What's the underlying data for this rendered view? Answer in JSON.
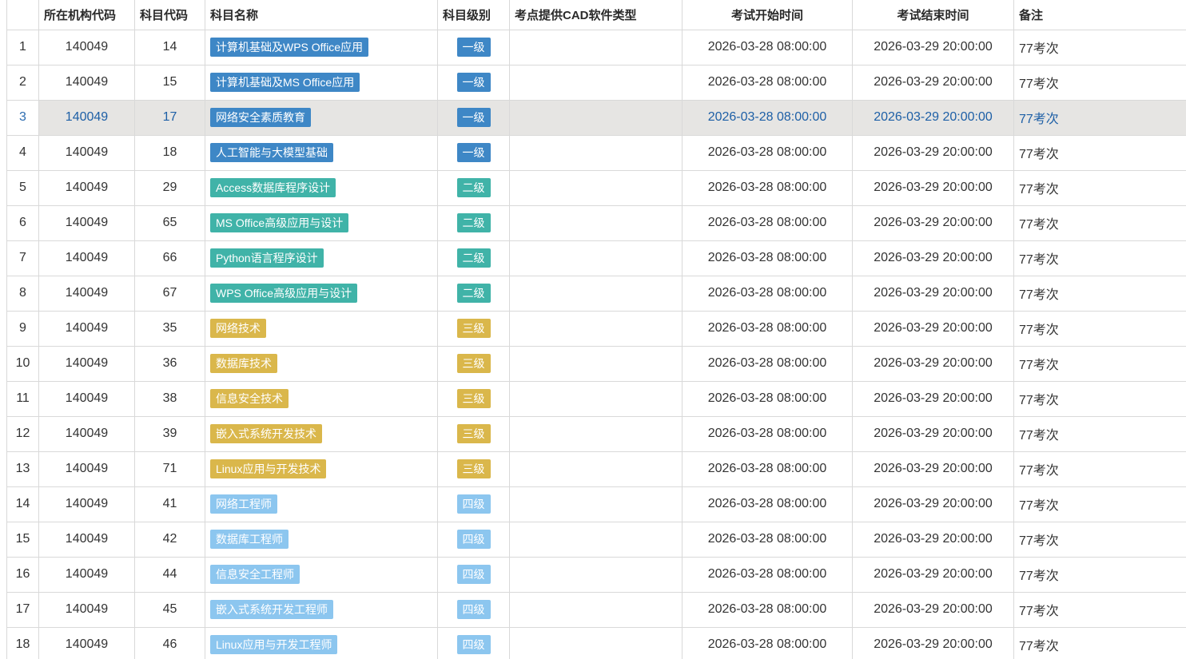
{
  "table": {
    "columns": [
      {
        "key": "index",
        "label": "",
        "align": "center"
      },
      {
        "key": "org_code",
        "label": "所在机构代码",
        "align": "left"
      },
      {
        "key": "subject_code",
        "label": "科目代码",
        "align": "left"
      },
      {
        "key": "subject_name",
        "label": "科目名称",
        "align": "left"
      },
      {
        "key": "subject_level",
        "label": "科目级别",
        "align": "left"
      },
      {
        "key": "cad_type",
        "label": "考点提供CAD软件类型",
        "align": "left"
      },
      {
        "key": "start_time",
        "label": "考试开始时间",
        "align": "center"
      },
      {
        "key": "end_time",
        "label": "考试结束时间",
        "align": "center"
      },
      {
        "key": "remark",
        "label": "备注",
        "align": "left"
      }
    ],
    "level_colors": {
      "一级": "#3e87c6",
      "二级": "#40b3a8",
      "三级": "#dab74b",
      "四级": "#8cc6ef"
    },
    "selected_row_index": 3,
    "selected_row_bg": "#e6e5e3",
    "selected_text_color": "#1d5fa6",
    "rows": [
      {
        "index": "1",
        "org_code": "140049",
        "subject_code": "14",
        "subject_name": "计算机基础及WPS Office应用",
        "subject_level": "一级",
        "cad_type": "",
        "start_time": "2026-03-28 08:00:00",
        "end_time": "2026-03-29 20:00:00",
        "remark": "77考次"
      },
      {
        "index": "2",
        "org_code": "140049",
        "subject_code": "15",
        "subject_name": "计算机基础及MS Office应用",
        "subject_level": "一级",
        "cad_type": "",
        "start_time": "2026-03-28 08:00:00",
        "end_time": "2026-03-29 20:00:00",
        "remark": "77考次"
      },
      {
        "index": "3",
        "org_code": "140049",
        "subject_code": "17",
        "subject_name": "网络安全素质教育",
        "subject_level": "一级",
        "cad_type": "",
        "start_time": "2026-03-28 08:00:00",
        "end_time": "2026-03-29 20:00:00",
        "remark": "77考次"
      },
      {
        "index": "4",
        "org_code": "140049",
        "subject_code": "18",
        "subject_name": "人工智能与大模型基础",
        "subject_level": "一级",
        "cad_type": "",
        "start_time": "2026-03-28 08:00:00",
        "end_time": "2026-03-29 20:00:00",
        "remark": "77考次"
      },
      {
        "index": "5",
        "org_code": "140049",
        "subject_code": "29",
        "subject_name": "Access数据库程序设计",
        "subject_level": "二级",
        "cad_type": "",
        "start_time": "2026-03-28 08:00:00",
        "end_time": "2026-03-29 20:00:00",
        "remark": "77考次"
      },
      {
        "index": "6",
        "org_code": "140049",
        "subject_code": "65",
        "subject_name": "MS Office高级应用与设计",
        "subject_level": "二级",
        "cad_type": "",
        "start_time": "2026-03-28 08:00:00",
        "end_time": "2026-03-29 20:00:00",
        "remark": "77考次"
      },
      {
        "index": "7",
        "org_code": "140049",
        "subject_code": "66",
        "subject_name": "Python语言程序设计",
        "subject_level": "二级",
        "cad_type": "",
        "start_time": "2026-03-28 08:00:00",
        "end_time": "2026-03-29 20:00:00",
        "remark": "77考次"
      },
      {
        "index": "8",
        "org_code": "140049",
        "subject_code": "67",
        "subject_name": "WPS Office高级应用与设计",
        "subject_level": "二级",
        "cad_type": "",
        "start_time": "2026-03-28 08:00:00",
        "end_time": "2026-03-29 20:00:00",
        "remark": "77考次"
      },
      {
        "index": "9",
        "org_code": "140049",
        "subject_code": "35",
        "subject_name": "网络技术",
        "subject_level": "三级",
        "cad_type": "",
        "start_time": "2026-03-28 08:00:00",
        "end_time": "2026-03-29 20:00:00",
        "remark": "77考次"
      },
      {
        "index": "10",
        "org_code": "140049",
        "subject_code": "36",
        "subject_name": "数据库技术",
        "subject_level": "三级",
        "cad_type": "",
        "start_time": "2026-03-28 08:00:00",
        "end_time": "2026-03-29 20:00:00",
        "remark": "77考次"
      },
      {
        "index": "11",
        "org_code": "140049",
        "subject_code": "38",
        "subject_name": "信息安全技术",
        "subject_level": "三级",
        "cad_type": "",
        "start_time": "2026-03-28 08:00:00",
        "end_time": "2026-03-29 20:00:00",
        "remark": "77考次"
      },
      {
        "index": "12",
        "org_code": "140049",
        "subject_code": "39",
        "subject_name": "嵌入式系统开发技术",
        "subject_level": "三级",
        "cad_type": "",
        "start_time": "2026-03-28 08:00:00",
        "end_time": "2026-03-29 20:00:00",
        "remark": "77考次"
      },
      {
        "index": "13",
        "org_code": "140049",
        "subject_code": "71",
        "subject_name": "Linux应用与开发技术",
        "subject_level": "三级",
        "cad_type": "",
        "start_time": "2026-03-28 08:00:00",
        "end_time": "2026-03-29 20:00:00",
        "remark": "77考次"
      },
      {
        "index": "14",
        "org_code": "140049",
        "subject_code": "41",
        "subject_name": "网络工程师",
        "subject_level": "四级",
        "cad_type": "",
        "start_time": "2026-03-28 08:00:00",
        "end_time": "2026-03-29 20:00:00",
        "remark": "77考次"
      },
      {
        "index": "15",
        "org_code": "140049",
        "subject_code": "42",
        "subject_name": "数据库工程师",
        "subject_level": "四级",
        "cad_type": "",
        "start_time": "2026-03-28 08:00:00",
        "end_time": "2026-03-29 20:00:00",
        "remark": "77考次"
      },
      {
        "index": "16",
        "org_code": "140049",
        "subject_code": "44",
        "subject_name": "信息安全工程师",
        "subject_level": "四级",
        "cad_type": "",
        "start_time": "2026-03-28 08:00:00",
        "end_time": "2026-03-29 20:00:00",
        "remark": "77考次"
      },
      {
        "index": "17",
        "org_code": "140049",
        "subject_code": "45",
        "subject_name": "嵌入式系统开发工程师",
        "subject_level": "四级",
        "cad_type": "",
        "start_time": "2026-03-28 08:00:00",
        "end_time": "2026-03-29 20:00:00",
        "remark": "77考次"
      },
      {
        "index": "18",
        "org_code": "140049",
        "subject_code": "46",
        "subject_name": "Linux应用与开发工程师",
        "subject_level": "四级",
        "cad_type": "",
        "start_time": "2026-03-28 08:00:00",
        "end_time": "2026-03-29 20:00:00",
        "remark": "77考次"
      }
    ]
  }
}
